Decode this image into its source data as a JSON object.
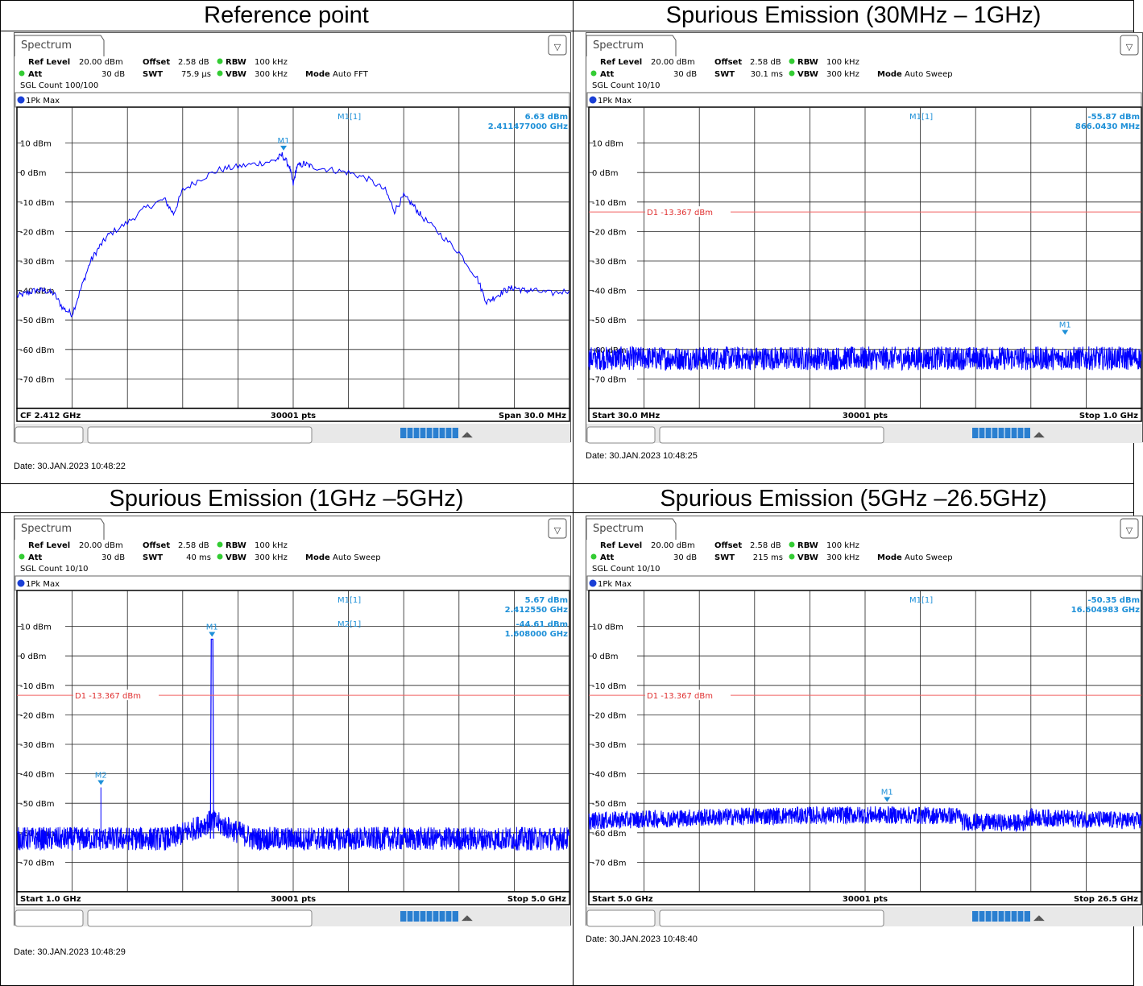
{
  "cells": [
    {
      "title": "Reference point",
      "tab": "Spectrum",
      "settings": {
        "ref_level_label": "Ref Level",
        "ref_level": "20.00 dBm",
        "offset_label": "Offset",
        "offset": "2.58 dB",
        "rbw_label": "RBW",
        "rbw": "100 kHz",
        "att_label": "Att",
        "att": "30 dB",
        "swt_label": "SWT",
        "swt": "75.9 µs",
        "vbw_label": "VBW",
        "vbw": "300 kHz",
        "mode_label": "Mode",
        "mode": "Auto FFT",
        "sgl": "SGL Count 100/100"
      },
      "trace_label": "1Pk Max",
      "footer": {
        "left": "CF 2.412 GHz",
        "center": "30001 pts",
        "right": "Span 30.0 MHz"
      },
      "date": "Date: 30.JAN.2023  10:48:22",
      "chart_data": {
        "type": "line",
        "y_ticks": [
          "10 dBm",
          "0 dBm",
          "-10 dBm",
          "-20 dBm",
          "-30 dBm",
          "-40 dBm",
          "-50 dBm",
          "-60 dBm",
          "-70 dBm"
        ],
        "ylim": [
          -80,
          20
        ],
        "xlim": [
          2397,
          2427
        ],
        "markers": [
          {
            "name": "M1",
            "x": 2411.477,
            "y": 6.63
          }
        ],
        "marker_readout": [
          {
            "label": "M1[1]",
            "level": "6.63 dBm",
            "freq": "2.411477000 GHz"
          }
        ],
        "series": [
          {
            "color": "#0000ff",
            "x": [
              2397,
              2397.5,
              2398,
              2398.5,
              2399,
              2399.5,
              2400,
              2400.5,
              2401,
              2401.5,
              2402,
              2403,
              2404,
              2405,
              2405.5,
              2406,
              2407,
              2408,
              2409,
              2410,
              2411,
              2411.4,
              2411.8,
              2412,
              2412.2,
              2412.6,
              2413,
              2414,
              2415,
              2416,
              2417,
              2417.5,
              2418,
              2418.5,
              2419,
              2420,
              2421,
              2422,
              2422.5,
              2423,
              2423.5,
              2424,
              2424.5,
              2425,
              2426,
              2427
            ],
            "y": [
              -42,
              -41,
              -40,
              -40,
              -41,
              -46,
              -48,
              -39,
              -30,
              -25,
              -21,
              -17,
              -12,
              -9,
              -14,
              -6,
              -2,
              1,
              2,
              3,
              4,
              6,
              2,
              -4,
              2,
              3,
              2,
              1,
              0,
              -2,
              -6,
              -13,
              -8,
              -11,
              -15,
              -21,
              -27,
              -36,
              -44,
              -42,
              -40,
              -39,
              -40,
              -40,
              -41,
              -40
            ]
          }
        ]
      }
    },
    {
      "title": "Spurious Emission (30MHz – 1GHz)",
      "tab": "Spectrum",
      "settings": {
        "ref_level_label": "Ref Level",
        "ref_level": "20.00 dBm",
        "offset_label": "Offset",
        "offset": "2.58 dB",
        "rbw_label": "RBW",
        "rbw": "100 kHz",
        "att_label": "Att",
        "att": "30 dB",
        "swt_label": "SWT",
        "swt": "30.1 ms",
        "vbw_label": "VBW",
        "vbw": "300 kHz",
        "mode_label": "Mode",
        "mode": "Auto Sweep",
        "sgl": "SGL Count 10/10"
      },
      "trace_label": "1Pk Max",
      "footer": {
        "left": "Start 30.0 MHz",
        "center": "30001 pts",
        "right": "Stop 1.0 GHz"
      },
      "date": "Date: 30.JAN.2023  10:48:25",
      "chart_data": {
        "type": "line",
        "y_ticks": [
          "10 dBm",
          "0 dBm",
          "-10 dBm",
          "-20 dBm",
          "-30 dBm",
          "-40 dBm",
          "-50 dBm",
          "-60 dBm",
          "-70 dBm"
        ],
        "ylim": [
          -80,
          20
        ],
        "xlim": [
          30,
          1000
        ],
        "display_line": {
          "label": "D1  -13.367 dBm",
          "y": -13.367
        },
        "markers": [
          {
            "name": "M1",
            "x": 866.043,
            "y": -55.87
          }
        ],
        "marker_readout": [
          {
            "label": "M1[1]",
            "level": "-55.87 dBm",
            "freq": "866.0430 MHz"
          }
        ],
        "series": [
          {
            "color": "#0000ff",
            "noise_floor": -63,
            "noise_spread": 4
          }
        ]
      }
    },
    {
      "title": "Spurious Emission (1GHz –5GHz)",
      "tab": "Spectrum",
      "settings": {
        "ref_level_label": "Ref Level",
        "ref_level": "20.00 dBm",
        "offset_label": "Offset",
        "offset": "2.58 dB",
        "rbw_label": "RBW",
        "rbw": "100 kHz",
        "att_label": "Att",
        "att": "30 dB",
        "swt_label": "SWT",
        "swt": "40 ms",
        "vbw_label": "VBW",
        "vbw": "300 kHz",
        "mode_label": "Mode",
        "mode": "Auto Sweep",
        "sgl": "SGL Count 10/10"
      },
      "trace_label": "1Pk Max",
      "footer": {
        "left": "Start 1.0 GHz",
        "center": "30001 pts",
        "right": "Stop 5.0 GHz"
      },
      "date": "Date: 30.JAN.2023  10:48:29",
      "chart_data": {
        "type": "line",
        "y_ticks": [
          "10 dBm",
          "0 dBm",
          "-10 dBm",
          "-20 dBm",
          "-30 dBm",
          "-40 dBm",
          "-50 dBm",
          "-60 dBm",
          "-70 dBm"
        ],
        "ylim": [
          -80,
          20
        ],
        "xlim": [
          1,
          5
        ],
        "display_line": {
          "label": "D1  -13.367 dBm",
          "y": -13.367
        },
        "markers": [
          {
            "name": "M1",
            "x": 2.41255,
            "y": 5.67
          },
          {
            "name": "M2",
            "x": 1.608,
            "y": -44.61
          }
        ],
        "marker_readout": [
          {
            "label": "M1[1]",
            "level": "5.67 dBm",
            "freq": "2.412550 GHz"
          },
          {
            "label": "M2[1]",
            "level": "-44.61 dBm",
            "freq": "1.608000 GHz"
          }
        ],
        "series": [
          {
            "color": "#0000ff",
            "noise_floor": -62,
            "noise_spread": 4
          }
        ]
      }
    },
    {
      "title": "Spurious Emission (5GHz –26.5GHz)",
      "tab": "Spectrum",
      "settings": {
        "ref_level_label": "Ref Level",
        "ref_level": "20.00 dBm",
        "offset_label": "Offset",
        "offset": "2.58 dB",
        "rbw_label": "RBW",
        "rbw": "100 kHz",
        "att_label": "Att",
        "att": "30 dB",
        "swt_label": "SWT",
        "swt": "215 ms",
        "vbw_label": "VBW",
        "vbw": "300 kHz",
        "mode_label": "Mode",
        "mode": "Auto Sweep",
        "sgl": "SGL Count 10/10"
      },
      "trace_label": "1Pk Max",
      "footer": {
        "left": "Start 5.0 GHz",
        "center": "30001 pts",
        "right": "Stop 26.5 GHz"
      },
      "date": "Date: 30.JAN.2023  10:48:40",
      "chart_data": {
        "type": "line",
        "y_ticks": [
          "10 dBm",
          "0 dBm",
          "-10 dBm",
          "-20 dBm",
          "-30 dBm",
          "-40 dBm",
          "-50 dBm",
          "-60 dBm",
          "-70 dBm"
        ],
        "ylim": [
          -80,
          20
        ],
        "xlim": [
          5,
          26.5
        ],
        "display_line": {
          "label": "D1  -13.367 dBm",
          "y": -13.367
        },
        "markers": [
          {
            "name": "M1",
            "x": 16.604983,
            "y": -50.35
          }
        ],
        "marker_readout": [
          {
            "label": "M1[1]",
            "level": "-50.35 dBm",
            "freq": "16.604983 GHz"
          }
        ],
        "series": [
          {
            "color": "#0000ff",
            "noise_floor": -56,
            "noise_spread": 3
          }
        ]
      }
    }
  ]
}
